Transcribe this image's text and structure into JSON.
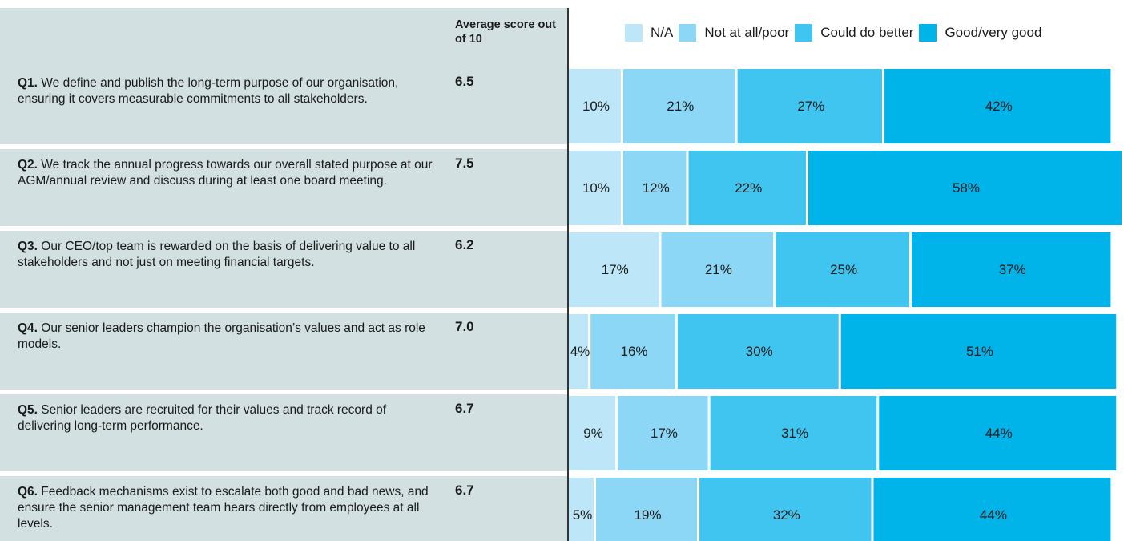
{
  "chart_data": {
    "type": "bar",
    "orientation": "horizontal",
    "stacked": true,
    "score_header": "Average score out of 10",
    "categories": [
      "Q1.",
      "Q2.",
      "Q3.",
      "Q4.",
      "Q5.",
      "Q6."
    ],
    "questions": [
      "We define and publish the long-term purpose of our organisation, ensuring it covers measurable commitments to all stakeholders.",
      "We track the annual progress towards our overall stated purpose at our AGM/annual review and discuss during at least one board meeting.",
      "Our CEO/top team is rewarded on the basis of delivering value to all stakeholders and not just on meeting financial targets.",
      "Our senior leaders champion the organisation’s values and act as role models.",
      "Senior leaders are recruited for their values and track record of delivering long-term performance.",
      "Feedback mechanisms exist to escalate both good and bad news, and ensure the senior management team hears directly from employees at all levels."
    ],
    "scores": [
      "6.5",
      "7.5",
      "6.2",
      "7.0",
      "6.7",
      "6.7"
    ],
    "xlim": [
      0,
      102
    ],
    "series": [
      {
        "name": "N/A",
        "color": "#bde7f8",
        "values": [
          10,
          10,
          17,
          4,
          9,
          5
        ],
        "value_labels": [
          "10%",
          "10%",
          "17%",
          "4%",
          "9%",
          "5%"
        ]
      },
      {
        "name": "Not at all/poor",
        "color": "#8cd7f5",
        "values": [
          21,
          12,
          21,
          16,
          17,
          19
        ],
        "value_labels": [
          "21%",
          "12%",
          "21%",
          "16%",
          "17%",
          "19%"
        ]
      },
      {
        "name": "Could do better",
        "color": "#40c5f0",
        "values": [
          27,
          22,
          25,
          30,
          31,
          32
        ],
        "value_labels": [
          "27%",
          "22%",
          "25%",
          "30%",
          "31%",
          "32%"
        ]
      },
      {
        "name": "Good/very good",
        "color": "#00b4ea",
        "values": [
          42,
          58,
          37,
          51,
          44,
          44
        ],
        "value_labels": [
          "42%",
          "58%",
          "37%",
          "51%",
          "44%",
          "44%"
        ]
      }
    ],
    "legend": "top"
  }
}
